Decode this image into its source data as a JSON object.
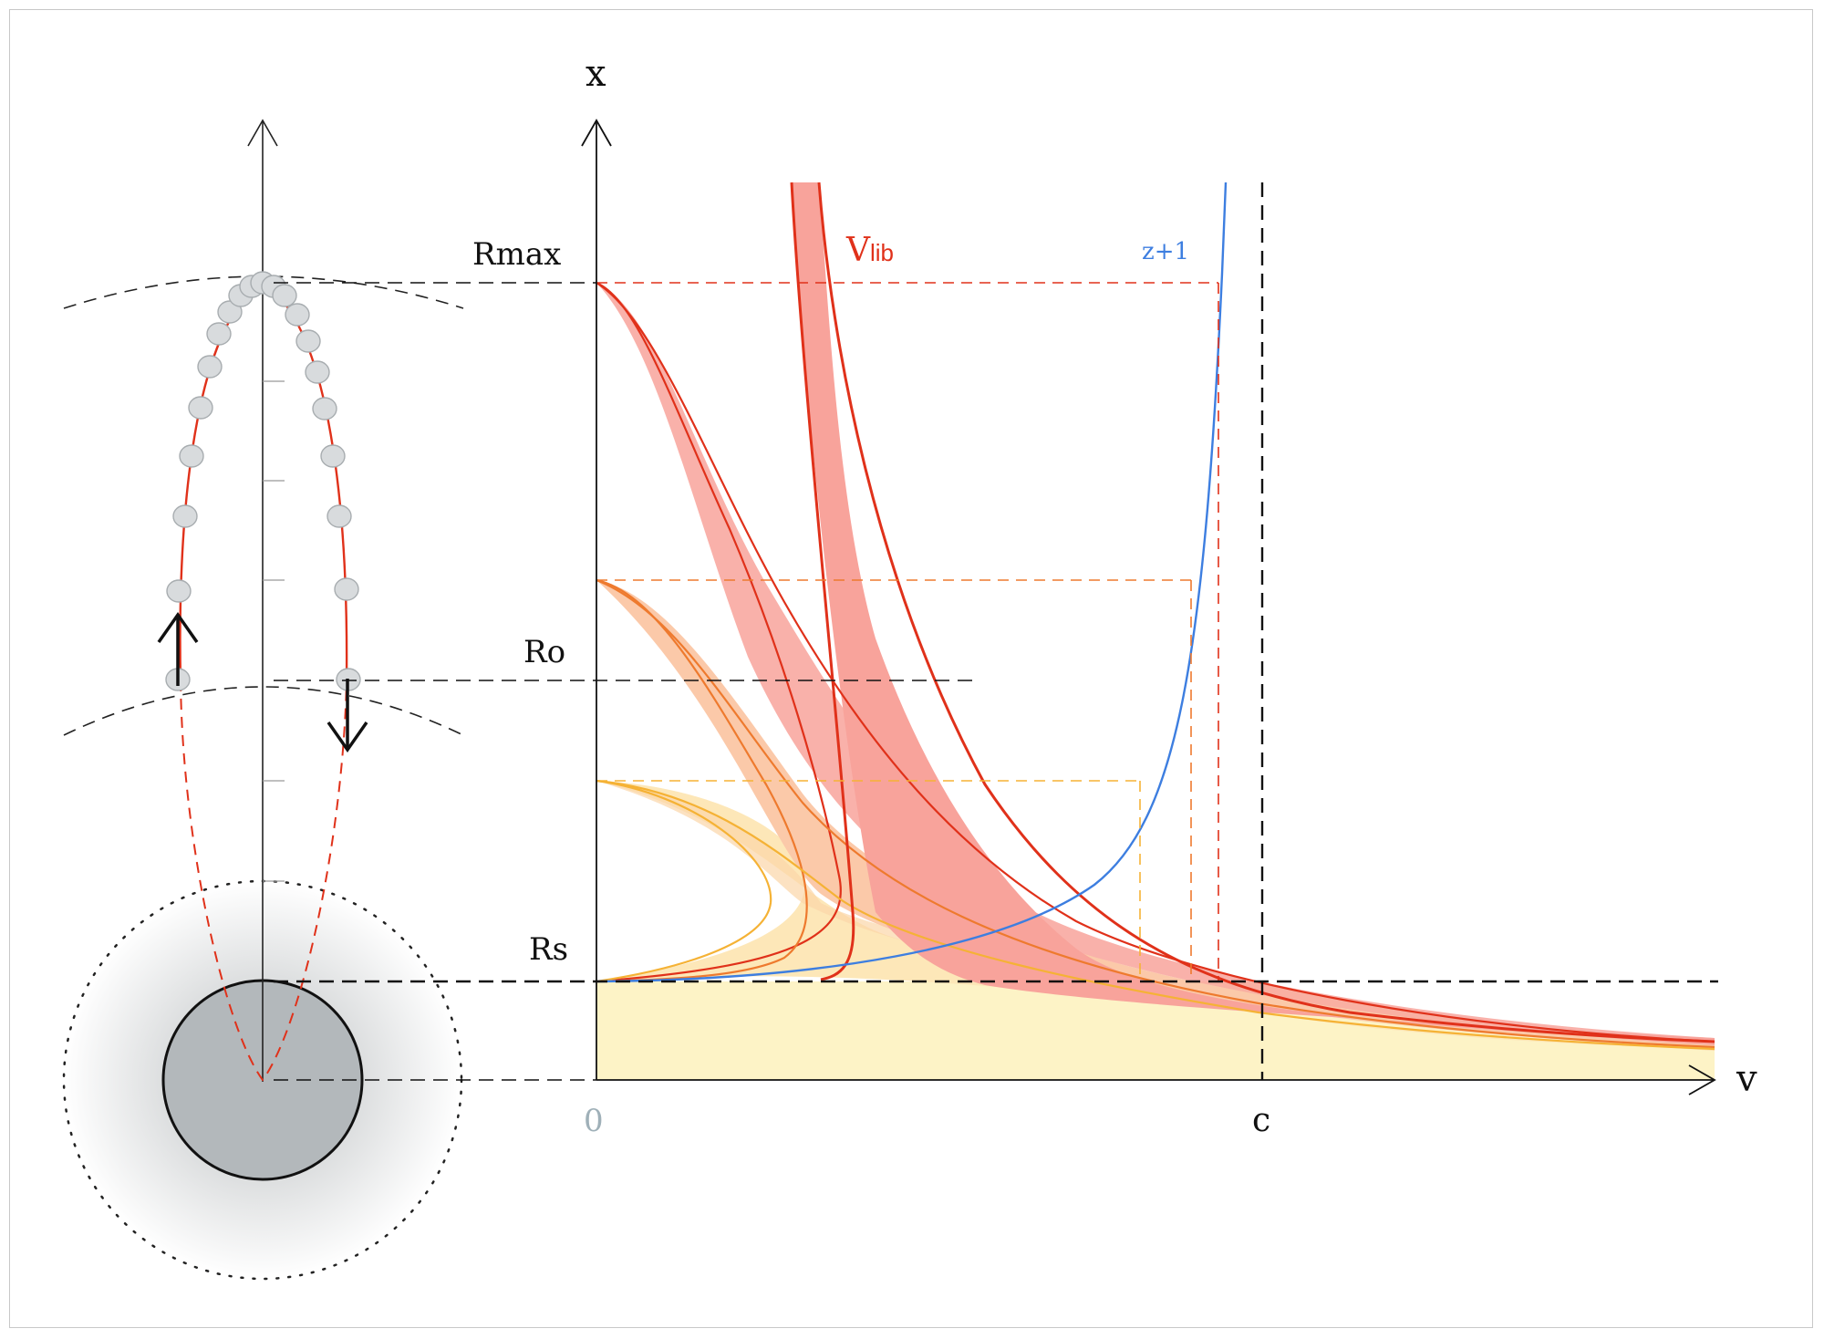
{
  "axes": {
    "x_label": "x",
    "v_label": "v",
    "origin_label": "0",
    "c_label": "c"
  },
  "levels": {
    "rmax_label": "Rmax",
    "ro_label": "Ro",
    "rs_label": "Rs"
  },
  "curves": {
    "vlib_main": "V",
    "vlib_sub": "lib",
    "redshift_label": "z+1"
  },
  "colors": {
    "red": "#e0311a",
    "orange": "#ee7a2e",
    "amber": "#f5b235",
    "blue": "#3d7ee0",
    "band_red": "#f8a39b",
    "band_orange": "#fbc9a9",
    "band_yellow": "#fde7b8",
    "floor_yellow": "#fdf3c6",
    "planet": "#b3b8bb"
  }
}
